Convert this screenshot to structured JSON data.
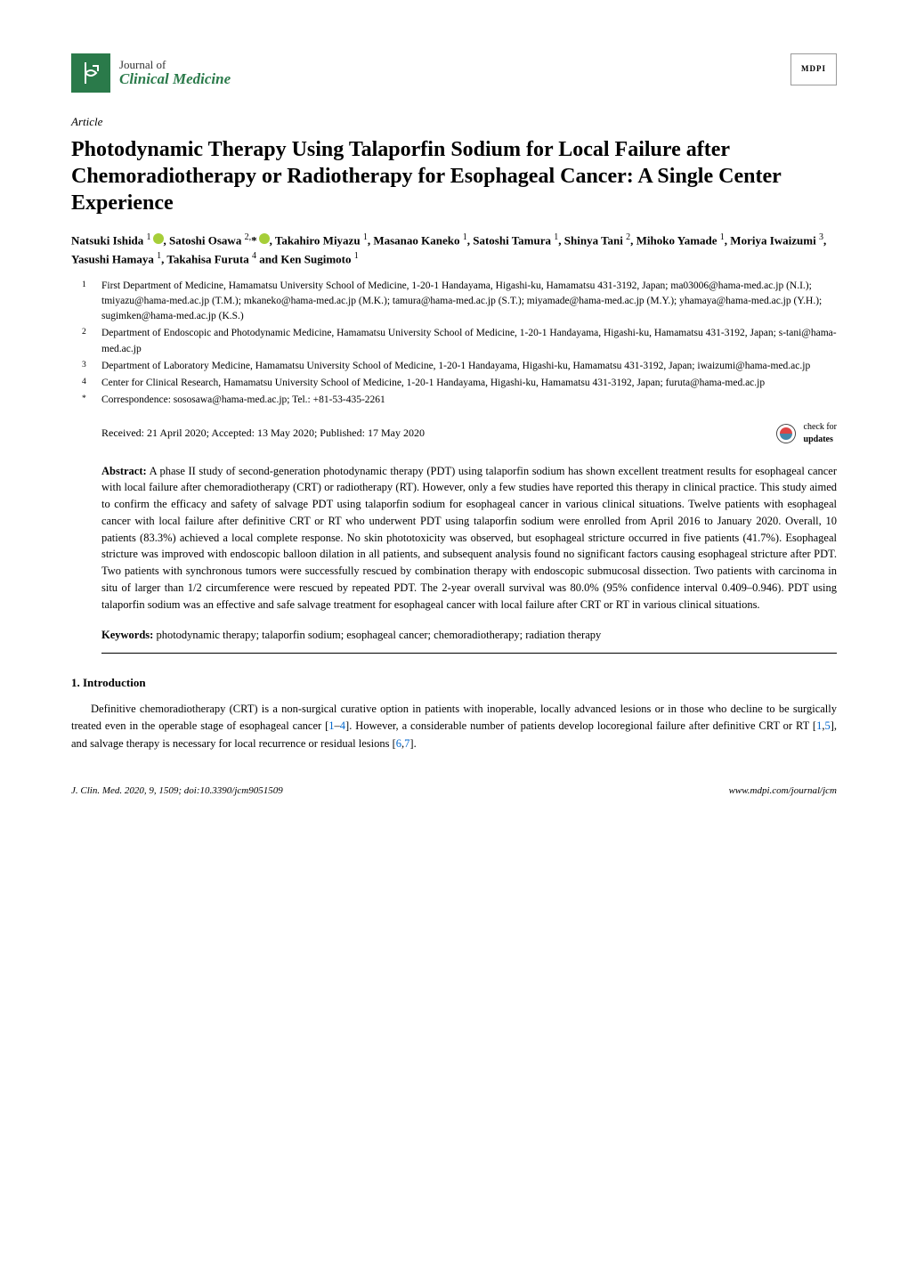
{
  "journal": {
    "prefix": "Journal of",
    "name": "Clinical Medicine",
    "publisher": "MDPI"
  },
  "article": {
    "type": "Article",
    "title": "Photodynamic Therapy Using Talaporfin Sodium for Local Failure after Chemoradiotherapy or Radiotherapy for Esophageal Cancer: A Single Center Experience"
  },
  "authors_html": "Natsuki Ishida <sup>1</sup><span class=\"orcid\" data-name=\"orcid-icon\" data-interactable=\"false\"></span>, Satoshi Osawa <sup>2,</sup>*<span class=\"orcid\" data-name=\"orcid-icon\" data-interactable=\"false\"></span>, Takahiro Miyazu <sup>1</sup>, Masanao Kaneko <sup>1</sup>, Satoshi Tamura <sup>1</sup>, Shinya Tani <sup>2</sup>, Mihoko Yamade <sup>1</sup>, Moriya Iwaizumi <sup>3</sup>, Yasushi Hamaya <sup>1</sup>, Takahisa Furuta <sup>4</sup> and Ken Sugimoto <sup>1</sup>",
  "affiliations": [
    {
      "num": "1",
      "text": "First Department of Medicine, Hamamatsu University School of Medicine, 1-20-1 Handayama, Higashi-ku, Hamamatsu 431-3192, Japan; ma03006@hama-med.ac.jp (N.I.); tmiyazu@hama-med.ac.jp (T.M.); mkaneko@hama-med.ac.jp (M.K.); tamura@hama-med.ac.jp (S.T.); miyamade@hama-med.ac.jp (M.Y.); yhamaya@hama-med.ac.jp (Y.H.); sugimken@hama-med.ac.jp (K.S.)"
    },
    {
      "num": "2",
      "text": "Department of Endoscopic and Photodynamic Medicine, Hamamatsu University School of Medicine, 1-20-1 Handayama, Higashi-ku, Hamamatsu 431-3192, Japan; s-tani@hama-med.ac.jp"
    },
    {
      "num": "3",
      "text": "Department of Laboratory Medicine, Hamamatsu University School of Medicine, 1-20-1 Handayama, Higashi-ku, Hamamatsu 431-3192, Japan; iwaizumi@hama-med.ac.jp"
    },
    {
      "num": "4",
      "text": "Center for Clinical Research, Hamamatsu University School of Medicine, 1-20-1 Handayama, Higashi-ku, Hamamatsu 431-3192, Japan; furuta@hama-med.ac.jp"
    },
    {
      "num": "*",
      "text": "Correspondence: sososawa@hama-med.ac.jp; Tel.: +81-53-435-2261"
    }
  ],
  "dates": "Received: 21 April 2020; Accepted: 13 May 2020; Published: 17 May 2020",
  "updates_label": "check for",
  "updates_label2": "updates",
  "abstract": {
    "label": "Abstract:",
    "text": "A phase II study of second-generation photodynamic therapy (PDT) using talaporfin sodium has shown excellent treatment results for esophageal cancer with local failure after chemoradiotherapy (CRT) or radiotherapy (RT). However, only a few studies have reported this therapy in clinical practice. This study aimed to confirm the efficacy and safety of salvage PDT using talaporfin sodium for esophageal cancer in various clinical situations. Twelve patients with esophageal cancer with local failure after definitive CRT or RT who underwent PDT using talaporfin sodium were enrolled from April 2016 to January 2020. Overall, 10 patients (83.3%) achieved a local complete response. No skin phototoxicity was observed, but esophageal stricture occurred in five patients (41.7%). Esophageal stricture was improved with endoscopic balloon dilation in all patients, and subsequent analysis found no significant factors causing esophageal stricture after PDT. Two patients with synchronous tumors were successfully rescued by combination therapy with endoscopic submucosal dissection. Two patients with carcinoma in situ of larger than 1/2 circumference were rescued by repeated PDT. The 2-year overall survival was 80.0% (95% confidence interval 0.409–0.946). PDT using talaporfin sodium was an effective and safe salvage treatment for esophageal cancer with local failure after CRT or RT in various clinical situations."
  },
  "keywords": {
    "label": "Keywords:",
    "text": "photodynamic therapy; talaporfin sodium; esophageal cancer; chemoradiotherapy; radiation therapy"
  },
  "sections": {
    "intro_heading": "1. Introduction",
    "intro_html": "Definitive chemoradiotherapy (CRT) is a non-surgical curative option in patients with inoperable, locally advanced lesions or in those who decline to be surgically treated even in the operable stage of esophageal cancer [<a class=\"ref\" data-name=\"citation-link\" data-interactable=\"true\">1</a>–<a class=\"ref\" data-name=\"citation-link\" data-interactable=\"true\">4</a>]. However, a considerable number of patients develop locoregional failure after definitive CRT or RT [<a class=\"ref\" data-name=\"citation-link\" data-interactable=\"true\">1</a>,<a class=\"ref\" data-name=\"citation-link\" data-interactable=\"true\">5</a>], and salvage therapy is necessary for local recurrence or residual lesions [<a class=\"ref\" data-name=\"citation-link\" data-interactable=\"true\">6</a>,<a class=\"ref\" data-name=\"citation-link\" data-interactable=\"true\">7</a>]."
  },
  "footer": {
    "left": "J. Clin. Med. 2020, 9, 1509; doi:10.3390/jcm9051509",
    "right": "www.mdpi.com/journal/jcm"
  },
  "colors": {
    "journal_green": "#2a7a4a",
    "orcid_green": "#a6ce39",
    "link_blue": "#0066cc"
  }
}
